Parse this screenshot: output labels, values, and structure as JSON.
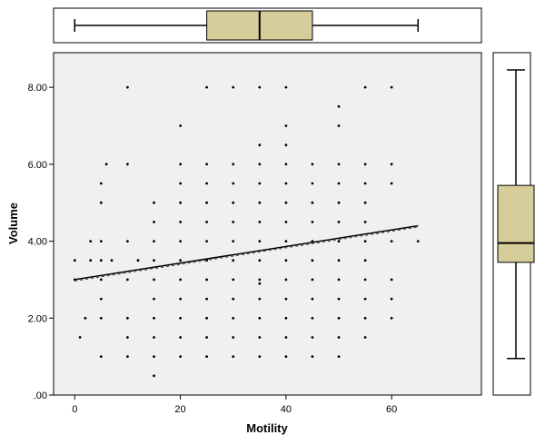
{
  "chart_data": {
    "type": "scatter",
    "title": "",
    "xlabel": "Motility",
    "ylabel": "Volume",
    "xlim": [
      -4,
      77
    ],
    "ylim": [
      0,
      8.9
    ],
    "x_ticks": [
      0,
      20,
      40,
      60
    ],
    "x_tick_labels": [
      "0",
      "20",
      "40",
      "60"
    ],
    "y_ticks": [
      0,
      2,
      4,
      6,
      8
    ],
    "y_tick_labels": [
      ".00",
      "2.00",
      "4.00",
      "6.00",
      "8.00"
    ],
    "grid": false,
    "legend": "none",
    "background_color": "#f0f0f0",
    "box_fill_color": "#d6cd9b",
    "points": [
      [
        0,
        3.5
      ],
      [
        0,
        3.0
      ],
      [
        1,
        1.5
      ],
      [
        2,
        2.0
      ],
      [
        3,
        3.5
      ],
      [
        3,
        4.0
      ],
      [
        5,
        1.0
      ],
      [
        5,
        2.0
      ],
      [
        5,
        2.5
      ],
      [
        5,
        3.0
      ],
      [
        5,
        3.5
      ],
      [
        5,
        4.0
      ],
      [
        5,
        5.0
      ],
      [
        5,
        5.5
      ],
      [
        6,
        6.0
      ],
      [
        7,
        3.5
      ],
      [
        10,
        1.0
      ],
      [
        10,
        1.5
      ],
      [
        10,
        2.0
      ],
      [
        10,
        3.0
      ],
      [
        10,
        4.0
      ],
      [
        10,
        6.0
      ],
      [
        10,
        8.0
      ],
      [
        12,
        3.5
      ],
      [
        15,
        0.5
      ],
      [
        15,
        1.0
      ],
      [
        15,
        1.5
      ],
      [
        15,
        2.0
      ],
      [
        15,
        2.5
      ],
      [
        15,
        3.0
      ],
      [
        15,
        3.5
      ],
      [
        15,
        4.0
      ],
      [
        15,
        4.5
      ],
      [
        15,
        5.0
      ],
      [
        20,
        1.0
      ],
      [
        20,
        1.5
      ],
      [
        20,
        2.0
      ],
      [
        20,
        2.5
      ],
      [
        20,
        3.0
      ],
      [
        20,
        3.5
      ],
      [
        20,
        4.0
      ],
      [
        20,
        4.5
      ],
      [
        20,
        5.0
      ],
      [
        20,
        5.5
      ],
      [
        20,
        6.0
      ],
      [
        20,
        7.0
      ],
      [
        25,
        1.0
      ],
      [
        25,
        1.5
      ],
      [
        25,
        2.0
      ],
      [
        25,
        2.5
      ],
      [
        25,
        3.0
      ],
      [
        25,
        3.5
      ],
      [
        25,
        4.0
      ],
      [
        25,
        4.5
      ],
      [
        25,
        5.0
      ],
      [
        25,
        5.5
      ],
      [
        25,
        6.0
      ],
      [
        25,
        8.0
      ],
      [
        30,
        1.0
      ],
      [
        30,
        1.5
      ],
      [
        30,
        2.0
      ],
      [
        30,
        2.5
      ],
      [
        30,
        3.0
      ],
      [
        30,
        3.5
      ],
      [
        30,
        4.0
      ],
      [
        30,
        4.5
      ],
      [
        30,
        5.0
      ],
      [
        30,
        5.5
      ],
      [
        30,
        6.0
      ],
      [
        30,
        8.0
      ],
      [
        35,
        1.0
      ],
      [
        35,
        1.5
      ],
      [
        35,
        2.0
      ],
      [
        35,
        2.5
      ],
      [
        35,
        2.9
      ],
      [
        35,
        3.0
      ],
      [
        35,
        3.5
      ],
      [
        35,
        4.0
      ],
      [
        35,
        4.5
      ],
      [
        35,
        5.0
      ],
      [
        35,
        5.5
      ],
      [
        35,
        6.0
      ],
      [
        35,
        6.5
      ],
      [
        35,
        8.0
      ],
      [
        40,
        1.0
      ],
      [
        40,
        1.5
      ],
      [
        40,
        2.0
      ],
      [
        40,
        2.5
      ],
      [
        40,
        3.0
      ],
      [
        40,
        3.5
      ],
      [
        40,
        4.0
      ],
      [
        40,
        4.5
      ],
      [
        40,
        5.0
      ],
      [
        40,
        5.5
      ],
      [
        40,
        6.0
      ],
      [
        40,
        6.5
      ],
      [
        40,
        7.0
      ],
      [
        40,
        8.0
      ],
      [
        45,
        1.0
      ],
      [
        45,
        1.5
      ],
      [
        45,
        2.0
      ],
      [
        45,
        2.5
      ],
      [
        45,
        3.0
      ],
      [
        45,
        3.5
      ],
      [
        45,
        4.0
      ],
      [
        45,
        4.5
      ],
      [
        45,
        5.0
      ],
      [
        45,
        5.5
      ],
      [
        45,
        6.0
      ],
      [
        50,
        1.0
      ],
      [
        50,
        1.5
      ],
      [
        50,
        2.0
      ],
      [
        50,
        2.5
      ],
      [
        50,
        3.0
      ],
      [
        50,
        3.5
      ],
      [
        50,
        4.0
      ],
      [
        50,
        4.5
      ],
      [
        50,
        5.0
      ],
      [
        50,
        5.5
      ],
      [
        50,
        6.0
      ],
      [
        50,
        7.0
      ],
      [
        50,
        7.5
      ],
      [
        55,
        1.5
      ],
      [
        55,
        2.0
      ],
      [
        55,
        2.5
      ],
      [
        55,
        3.0
      ],
      [
        55,
        3.5
      ],
      [
        55,
        4.0
      ],
      [
        55,
        4.5
      ],
      [
        55,
        5.0
      ],
      [
        55,
        5.5
      ],
      [
        55,
        6.0
      ],
      [
        55,
        8.0
      ],
      [
        60,
        2.0
      ],
      [
        60,
        2.5
      ],
      [
        60,
        3.0
      ],
      [
        60,
        4.0
      ],
      [
        60,
        5.5
      ],
      [
        60,
        6.0
      ],
      [
        60,
        8.0
      ],
      [
        65,
        4.0
      ]
    ],
    "fit_line": {
      "x": [
        0,
        65
      ],
      "y": [
        3.0,
        4.4
      ]
    },
    "boxplot_x": {
      "min": 0,
      "q1": 25,
      "median": 35,
      "q3": 45,
      "max": 65
    },
    "boxplot_y": {
      "min": 0.95,
      "q1": 3.45,
      "median": 3.95,
      "q3": 5.45,
      "max": 8.45
    }
  }
}
